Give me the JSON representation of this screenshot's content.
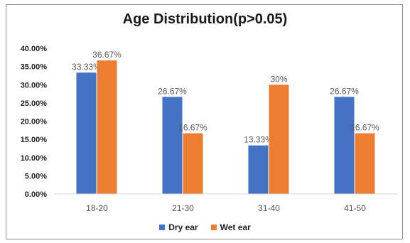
{
  "chart_data": {
    "type": "bar",
    "title": "Age Distribution(p>0.05)",
    "categories": [
      "18-20",
      "21-30",
      "31-40",
      "41-50"
    ],
    "series": [
      {
        "name": "Dry ear",
        "values": [
          33.33,
          26.67,
          13.33,
          26.67
        ],
        "labels": [
          "33.33%",
          "26.67%",
          "13.33%",
          "26.67%"
        ],
        "color": "#4472C4"
      },
      {
        "name": "Wet ear",
        "values": [
          36.67,
          16.67,
          30,
          16.67
        ],
        "labels": [
          "36.67%",
          "16.67%",
          "30%",
          "16.67%"
        ],
        "color": "#ED7D31"
      }
    ],
    "ylim": [
      0,
      40
    ],
    "yticks": [
      "0.00%",
      "5.00%",
      "10.00%",
      "15.00%",
      "20.00%",
      "25.00%",
      "30.00%",
      "35.00%",
      "40.00%"
    ],
    "grid": false,
    "legend_position": "bottom"
  }
}
